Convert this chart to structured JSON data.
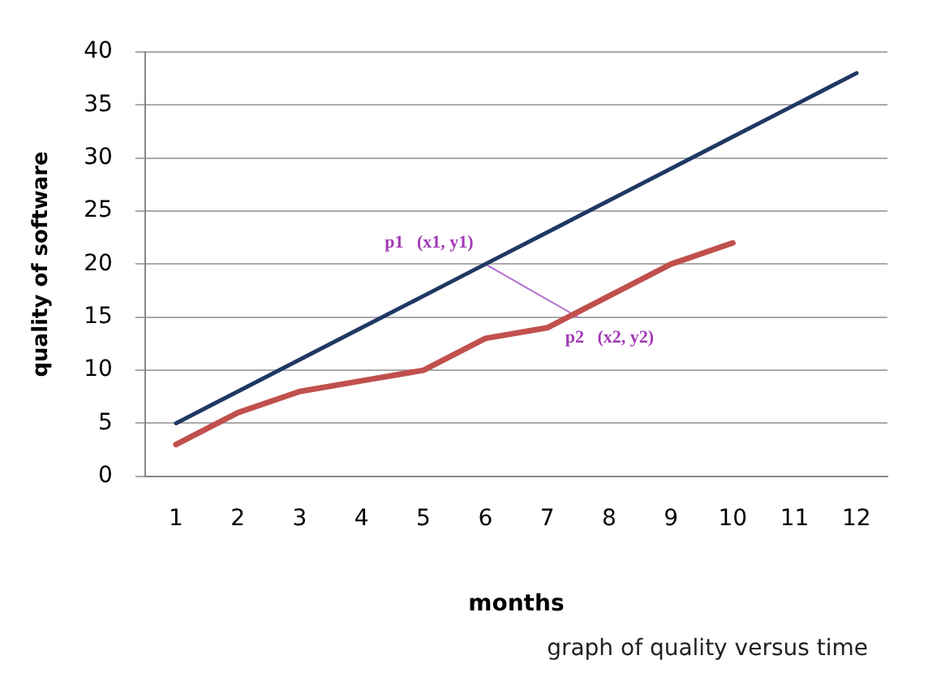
{
  "chart_data": {
    "type": "line",
    "xlabel": "months",
    "ylabel": "quality of software",
    "x": [
      1,
      2,
      3,
      4,
      5,
      6,
      7,
      8,
      9,
      10,
      11,
      12
    ],
    "xlim": [
      0.5,
      12.5
    ],
    "xticks": [
      1,
      2,
      3,
      4,
      5,
      6,
      7,
      8,
      9,
      10,
      11,
      12
    ],
    "ylim": [
      0,
      40
    ],
    "yticks": [
      0,
      5,
      10,
      15,
      20,
      25,
      30,
      35,
      40
    ],
    "grid": "y",
    "legend": false,
    "marker": "none",
    "line_style": "solid",
    "series": [
      {
        "color": "#1f3864",
        "values": [
          5,
          8,
          11,
          14,
          17,
          20,
          23,
          26,
          29,
          32,
          35,
          38
        ]
      },
      {
        "color": "#c0504d",
        "values": [
          3,
          6,
          8,
          9,
          10,
          13,
          14,
          17,
          20,
          22,
          null,
          null
        ]
      },
      {
        "color": "#b36ad0",
        "x": [
          6,
          7.5
        ],
        "values": [
          20,
          15
        ]
      }
    ],
    "annotations": [
      {
        "text": "p1   (x1, y1)",
        "x": 6,
        "y": 20
      },
      {
        "text": "p2   (x2, y2)",
        "x": 7.5,
        "y": 15
      },
      "graph of quality versus time"
    ]
  }
}
